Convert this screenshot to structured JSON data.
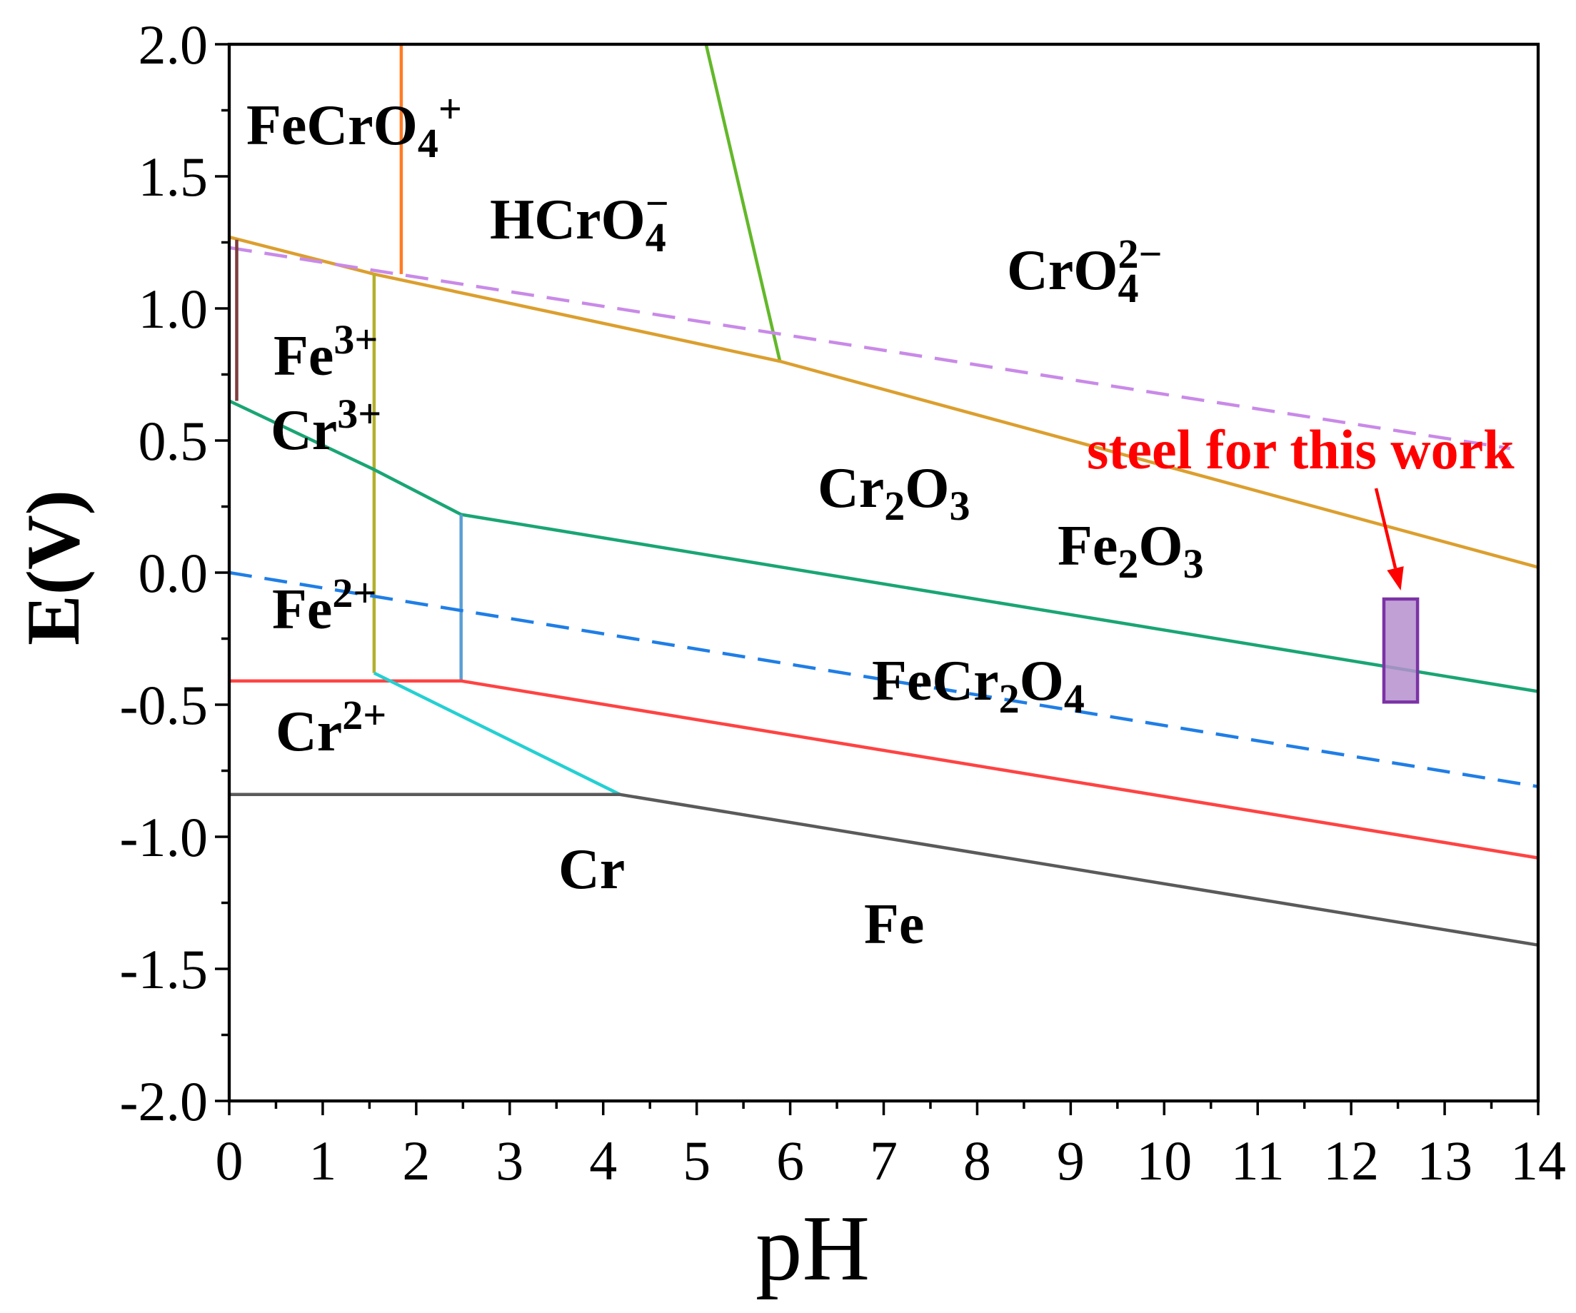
{
  "chart_data": {
    "type": "line",
    "xlabel": "pH",
    "ylabel": "E(V)",
    "xlim": [
      0,
      14
    ],
    "ylim": [
      -2.0,
      2.0
    ],
    "x_ticks": [
      "0",
      "1",
      "2",
      "3",
      "4",
      "5",
      "6",
      "7",
      "8",
      "9",
      "10",
      "11",
      "12",
      "13",
      "14"
    ],
    "y_ticks": [
      "2.0",
      "1.5",
      "1.0",
      "0.5",
      "0.0",
      "-0.5",
      "-1.0",
      "-1.5",
      "-2.0"
    ],
    "grid": false,
    "axis_color": "#000000",
    "series": [
      {
        "color": "#ff7b25",
        "dashed": false,
        "x": [
          1.84,
          1.84
        ],
        "y": [
          2.0,
          1.13
        ]
      },
      {
        "color": "#63b82a",
        "dashed": false,
        "x": [
          5.1,
          5.89
        ],
        "y": [
          2.0,
          0.8
        ]
      },
      {
        "color": "#dc9f2e",
        "dashed": false,
        "x": [
          0,
          1.55,
          5.89,
          14
        ],
        "y": [
          1.27,
          1.13,
          0.8,
          0.02
        ]
      },
      {
        "color": "#c98ae8",
        "dashed": true,
        "x": [
          0,
          13.7
        ],
        "y": [
          1.23,
          0.47
        ]
      },
      {
        "color": "#7e3d3d",
        "dashed": false,
        "x": [
          0.08,
          0.08
        ],
        "y": [
          1.26,
          0.65
        ]
      },
      {
        "color": "#b3b02c",
        "dashed": false,
        "x": [
          1.55,
          1.55
        ],
        "y": [
          1.13,
          -0.38
        ]
      },
      {
        "color": "#19a574",
        "dashed": false,
        "x": [
          0,
          1.55,
          2.48,
          14
        ],
        "y": [
          0.65,
          0.39,
          0.22,
          -0.45
        ]
      },
      {
        "color": "#5a9fd4",
        "dashed": false,
        "x": [
          2.48,
          2.48
        ],
        "y": [
          0.22,
          -0.41
        ]
      },
      {
        "color": "#1f7ee6",
        "dashed": true,
        "x": [
          0,
          14
        ],
        "y": [
          0.0,
          -0.81
        ]
      },
      {
        "color": "#ff4343",
        "dashed": false,
        "x": [
          0,
          2.48,
          14
        ],
        "y": [
          -0.41,
          -0.41,
          -1.08
        ]
      },
      {
        "color": "#24d0d2",
        "dashed": false,
        "x": [
          1.55,
          4.18
        ],
        "y": [
          -0.38,
          -0.84
        ]
      },
      {
        "color": "#5a5a5a",
        "dashed": false,
        "x": [
          0,
          4.18,
          14
        ],
        "y": [
          -0.84,
          -0.84,
          -1.41
        ]
      }
    ],
    "regions": [
      {
        "parts": [
          {
            "text": "FeCrO"
          },
          {
            "sub": "4"
          },
          {
            "sup": "+"
          }
        ]
      },
      {
        "parts": [
          {
            "text": "HCrO"
          },
          {
            "sub": "4",
            "sup": "−"
          }
        ]
      },
      {
        "parts": [
          {
            "text": "CrO"
          },
          {
            "sub": "4",
            "sup": "2−"
          }
        ]
      },
      {
        "parts": [
          {
            "text": "Fe"
          },
          {
            "sup": "3+"
          }
        ]
      },
      {
        "parts": [
          {
            "text": "Cr"
          },
          {
            "sup": "3+"
          }
        ]
      },
      {
        "parts": [
          {
            "text": "Cr"
          },
          {
            "sub": "2"
          },
          {
            "text": "O"
          },
          {
            "sub": "3"
          }
        ]
      },
      {
        "parts": [
          {
            "text": "Fe"
          },
          {
            "sub": "2"
          },
          {
            "text": "O"
          },
          {
            "sub": "3"
          }
        ]
      },
      {
        "parts": [
          {
            "text": "Fe"
          },
          {
            "sup": "2+"
          }
        ]
      },
      {
        "parts": [
          {
            "text": "FeCr"
          },
          {
            "sub": "2"
          },
          {
            "text": "O"
          },
          {
            "sub": "4"
          }
        ]
      },
      {
        "parts": [
          {
            "text": "Cr"
          },
          {
            "sup": "2+"
          }
        ]
      },
      {
        "parts": [
          {
            "text": "Cr"
          }
        ]
      },
      {
        "parts": [
          {
            "text": "Fe"
          }
        ]
      }
    ],
    "annotation": {
      "text": "steel for this work",
      "color": "#ff0000",
      "box_x": [
        12.35,
        12.71
      ],
      "box_y": [
        -0.49,
        -0.1
      ],
      "box_fill": "#b68fcf",
      "box_stroke": "#7b33a5"
    }
  }
}
